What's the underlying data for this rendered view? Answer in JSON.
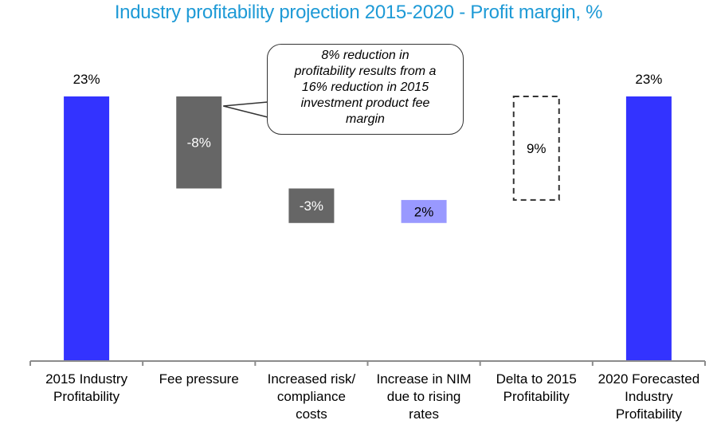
{
  "chart_data": {
    "type": "bar",
    "subtype": "waterfall",
    "title": "Industry profitability projection 2015-2020 - Profit margin, %",
    "xlabel": "",
    "ylabel": "",
    "ylim": [
      0,
      23
    ],
    "grid": false,
    "categories": [
      [
        "2015 Industry",
        "Profitability"
      ],
      [
        "Fee pressure"
      ],
      [
        "Increased risk/",
        "compliance",
        "costs"
      ],
      [
        "Increase in NIM",
        "due to rising",
        "rates"
      ],
      [
        "Delta to 2015",
        "Profitability"
      ],
      [
        "2020 Forecasted",
        "Industry",
        "Profitability"
      ]
    ],
    "bars": [
      {
        "kind": "total",
        "start": 0,
        "end": 23,
        "value": 23,
        "label": "23%",
        "color": "#3333ff",
        "label_position": "above"
      },
      {
        "kind": "decrease",
        "start": 23,
        "end": 15,
        "value": -8,
        "label": "-8%",
        "color": "#666666",
        "label_position": "inside"
      },
      {
        "kind": "decrease",
        "start": 15,
        "end": 12,
        "value": -3,
        "label": "-3%",
        "color": "#666666",
        "label_position": "inside"
      },
      {
        "kind": "increase",
        "start": 12,
        "end": 14,
        "value": 2,
        "label": "2%",
        "color": "#9999ff",
        "label_position": "inside"
      },
      {
        "kind": "gap",
        "start": 14,
        "end": 23,
        "value": 9,
        "label": "9%",
        "color": "none",
        "dashed": true,
        "label_position": "inside"
      },
      {
        "kind": "total",
        "start": 0,
        "end": 23,
        "value": 23,
        "label": "23%",
        "color": "#3333ff",
        "label_position": "above"
      }
    ],
    "annotations": [
      {
        "target_bar": 1,
        "text": [
          "8% reduction in",
          "profitability results from a",
          "16% reduction in 2015",
          "investment product fee",
          "margin"
        ]
      }
    ]
  }
}
